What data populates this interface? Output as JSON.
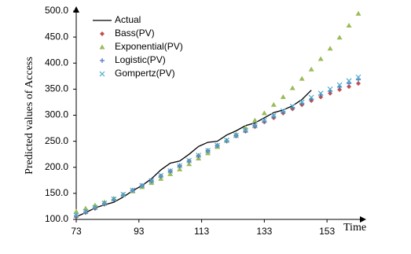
{
  "chart_data": {
    "type": "line",
    "xlabel": "Time",
    "ylabel": "Predicted values of Access",
    "xlim": [
      73,
      164
    ],
    "xticks": [
      73,
      93,
      113,
      133,
      153
    ],
    "ylim": [
      100,
      500
    ],
    "yticks": [
      {
        "value": 100,
        "label": "100.0"
      },
      {
        "value": 150,
        "label": "150.0"
      },
      {
        "value": 200,
        "label": "200.0"
      },
      {
        "value": 250,
        "label": "250.0"
      },
      {
        "value": 300,
        "label": "300.0"
      },
      {
        "value": 350,
        "label": "350.0"
      },
      {
        "value": 400,
        "label": "400.0"
      },
      {
        "value": 450,
        "label": "450.0"
      },
      {
        "value": 500,
        "label": "500.0"
      }
    ],
    "legend": "upper left",
    "series": [
      {
        "name": "Actual",
        "color": "#000000",
        "marker": "line",
        "x": [
          73,
          76,
          79,
          82,
          85,
          88,
          91,
          94,
          97,
          100,
          103,
          106,
          109,
          112,
          115,
          118,
          121,
          124,
          127,
          130,
          133,
          136,
          139,
          142,
          145,
          148
        ],
        "values": [
          105,
          113,
          122,
          128,
          133,
          143,
          155,
          165,
          178,
          195,
          208,
          212,
          225,
          240,
          248,
          250,
          262,
          270,
          280,
          285,
          295,
          305,
          310,
          318,
          330,
          348
        ]
      },
      {
        "name": "Bass(PV)",
        "color": "#c0504d",
        "marker": "diamond",
        "x": [
          73,
          76,
          79,
          82,
          85,
          88,
          91,
          94,
          97,
          100,
          103,
          106,
          109,
          112,
          115,
          118,
          121,
          124,
          127,
          130,
          133,
          136,
          139,
          142,
          145,
          148,
          151,
          154,
          157,
          160,
          163
        ],
        "values": [
          105,
          113,
          121,
          129,
          138,
          146,
          155,
          164,
          173,
          183,
          192,
          202,
          212,
          222,
          231,
          241,
          250,
          260,
          269,
          278,
          287,
          295,
          304,
          312,
          320,
          328,
          335,
          342,
          349,
          355,
          361
        ]
      },
      {
        "name": "Exponential(PV)",
        "color": "#9bbb59",
        "marker": "triangle",
        "x": [
          73,
          76,
          79,
          82,
          85,
          88,
          91,
          94,
          97,
          100,
          103,
          106,
          109,
          112,
          115,
          118,
          121,
          124,
          127,
          130,
          133,
          136,
          139,
          142,
          145,
          148,
          151,
          154,
          157,
          160,
          163
        ],
        "values": [
          115,
          121,
          127,
          133,
          140,
          147,
          154,
          162,
          170,
          178,
          187,
          196,
          206,
          217,
          227,
          239,
          251,
          263,
          276,
          290,
          304,
          320,
          335,
          352,
          370,
          388,
          408,
          428,
          449,
          472,
          495
        ]
      },
      {
        "name": "Logistic(PV)",
        "color": "#4f6fc4",
        "marker": "plus",
        "x": [
          73,
          76,
          79,
          82,
          85,
          88,
          91,
          94,
          97,
          100,
          103,
          106,
          109,
          112,
          115,
          118,
          121,
          124,
          127,
          130,
          133,
          136,
          139,
          142,
          145,
          148,
          151,
          154,
          157,
          160,
          163
        ],
        "values": [
          107,
          114,
          122,
          130,
          138,
          147,
          156,
          165,
          174,
          183,
          193,
          203,
          212,
          222,
          232,
          242,
          251,
          261,
          270,
          280,
          289,
          298,
          307,
          315,
          323,
          331,
          339,
          346,
          354,
          361,
          368
        ]
      },
      {
        "name": "Gompertz(PV)",
        "color": "#4bacc6",
        "marker": "x",
        "x": [
          73,
          76,
          79,
          82,
          85,
          88,
          91,
          94,
          97,
          100,
          103,
          106,
          109,
          112,
          115,
          118,
          121,
          124,
          127,
          130,
          133,
          136,
          139,
          142,
          145,
          148,
          151,
          154,
          157,
          160,
          163
        ],
        "values": [
          108,
          115,
          123,
          131,
          139,
          148,
          156,
          165,
          174,
          184,
          193,
          203,
          213,
          223,
          232,
          242,
          252,
          261,
          271,
          280,
          290,
          299,
          308,
          317,
          325,
          334,
          342,
          350,
          358,
          366,
          373
        ]
      }
    ]
  }
}
